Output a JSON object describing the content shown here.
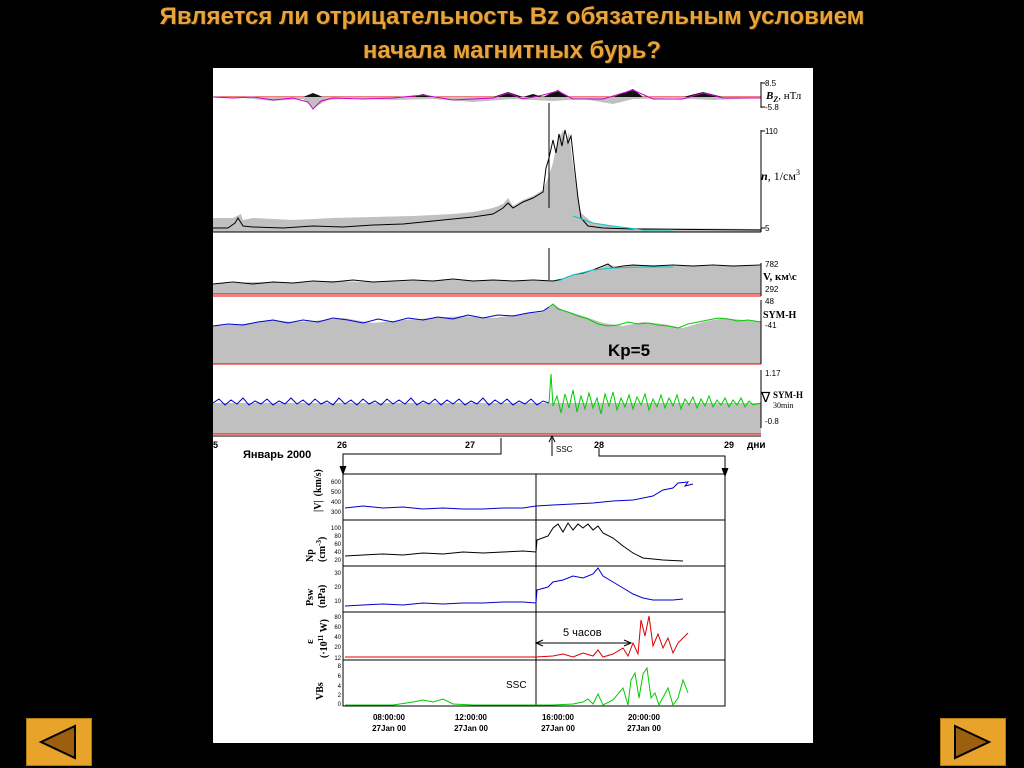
{
  "slide": {
    "title_line1": "Является ли отрицательность Bz обязательным условием",
    "title_line2": "начала магнитных бурь?"
  },
  "top_panels": {
    "bz": {
      "max": "8.5",
      "min": "-5.8",
      "label": "B",
      "sub": "Z",
      "unit": ", нТл"
    },
    "n": {
      "max": "110",
      "min": "5",
      "label": "n",
      "unit": ", 1/см",
      "exp": "3"
    },
    "v": {
      "max": "782",
      "min": "292",
      "label": "V, км\\с"
    },
    "symh": {
      "max": "48",
      "min": "-41",
      "label": "SYM-H",
      "kp": "Kp=5"
    },
    "dsymh": {
      "max": "1.17",
      "min": "-0.8",
      "label": "SYM-H",
      "sub": "30min",
      "symbol": "∇"
    },
    "x_ticks": [
      "5",
      "26",
      "27",
      "28",
      "29"
    ],
    "x_unit": "дни",
    "ssc": "SSC",
    "month": "Январь 2000"
  },
  "bottom_panels": {
    "labels": {
      "v": [
        "|V|",
        "(km/s)"
      ],
      "np": [
        "Np",
        "(cm",
        "-3",
        ")"
      ],
      "psw": [
        "Psw",
        "(nPa)"
      ],
      "eps": [
        "ε",
        "(·10",
        "11",
        " W)"
      ],
      "vbs": [
        "VBs"
      ]
    },
    "v_ticks": [
      "600",
      "500",
      "400",
      "300"
    ],
    "np_ticks": [
      "100",
      "80",
      "60",
      "40",
      "20"
    ],
    "psw_ticks": [
      "30",
      "20",
      "10"
    ],
    "eps_ticks": [
      "80",
      "60",
      "40",
      "20",
      "12"
    ],
    "vbs_ticks": [
      "8",
      "6",
      "4",
      "2",
      "0"
    ],
    "x_times": [
      "08:00:00",
      "12:00:00",
      "16:00:00",
      "20:00:00"
    ],
    "x_dates": [
      "27Jan 00",
      "27Jan 00",
      "27Jan 00",
      "27Jan 00"
    ],
    "annotation": "5 часов",
    "ssc": "SSC"
  },
  "colors": {
    "title": "#e8a33a",
    "button": "#e8a32a",
    "fill_gray": "#c0c0c0",
    "blue": "#0000cc",
    "green": "#00cc00",
    "red": "#dd0000",
    "magenta": "#cc00cc",
    "cyan": "#00cccc"
  },
  "nav": {
    "prev_icon": "triangle-left-icon",
    "next_icon": "triangle-right-icon"
  }
}
